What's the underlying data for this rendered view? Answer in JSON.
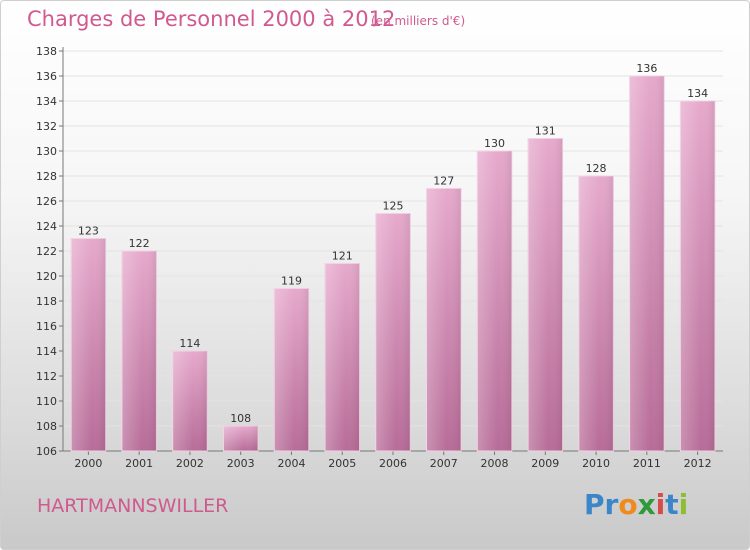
{
  "chart_data": {
    "type": "bar",
    "title": "Charges de Personnel 2000 à 2012",
    "subtitle": "(en milliers d'€)",
    "xlabel": "",
    "ylabel": "",
    "categories": [
      "2000",
      "2001",
      "2002",
      "2003",
      "2004",
      "2005",
      "2006",
      "2007",
      "2008",
      "2009",
      "2010",
      "2011",
      "2012"
    ],
    "values": [
      123,
      122,
      114,
      108,
      119,
      121,
      125,
      127,
      130,
      131,
      128,
      136,
      134
    ],
    "ylim": [
      106,
      138
    ],
    "yticks": [
      106,
      108,
      110,
      112,
      114,
      116,
      118,
      120,
      122,
      124,
      126,
      128,
      130,
      132,
      134,
      136,
      138
    ],
    "grid": true,
    "legend": "none",
    "bar_color": "#d98fb8"
  },
  "footer": {
    "commune": "HARTMANNSWILLER",
    "logo_letters": [
      {
        "char": "P",
        "color": "#3a86c8"
      },
      {
        "char": "r",
        "color": "#3a86c8"
      },
      {
        "char": "o",
        "color": "#f08a1c"
      },
      {
        "char": "x",
        "color": "#2f9a3a"
      },
      {
        "char": "i",
        "color": "#d64b4b"
      },
      {
        "char": "t",
        "color": "#3a86c8"
      },
      {
        "char": "i",
        "color": "#8bbf2e"
      }
    ]
  }
}
